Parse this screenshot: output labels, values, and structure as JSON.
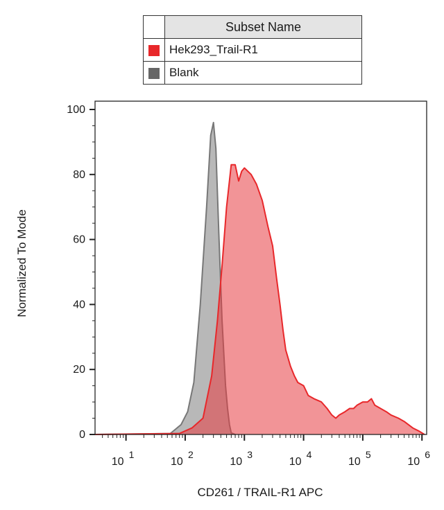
{
  "legend": {
    "header": "Subset Name",
    "items": [
      {
        "label": "Hek293_Trail-R1",
        "color": "#e8272a"
      },
      {
        "label": "Blank",
        "color": "#666666"
      }
    ]
  },
  "chart_data": {
    "type": "area",
    "title": "",
    "xlabel": "CD261 / TRAIL-R1 APC",
    "ylabel": "Normalized To Mode",
    "x_scale": "log",
    "xlim": [
      3,
      1200000
    ],
    "ylim": [
      0,
      100
    ],
    "x_ticks": [
      {
        "base": "10",
        "exp": "1",
        "value": 10
      },
      {
        "base": "10",
        "exp": "2",
        "value": 100
      },
      {
        "base": "10",
        "exp": "3",
        "value": 1000
      },
      {
        "base": "10",
        "exp": "4",
        "value": 10000
      },
      {
        "base": "10",
        "exp": "5",
        "value": 100000
      },
      {
        "base": "10",
        "exp": "6",
        "value": 1000000
      }
    ],
    "y_ticks": [
      0,
      20,
      40,
      60,
      80,
      100
    ],
    "grid": false,
    "legend_position": "top",
    "series": [
      {
        "name": "Blank",
        "fill": "#b8b8b8",
        "stroke": "#777777",
        "x": [
          3,
          56,
          85,
          110,
          140,
          180,
          230,
          270,
          300,
          330,
          370,
          420,
          480,
          520,
          560,
          600,
          700
        ],
        "y": [
          0,
          0.3,
          3,
          7,
          16,
          40,
          70,
          92,
          96,
          88,
          62,
          35,
          15,
          8,
          3,
          0.5,
          0
        ]
      },
      {
        "name": "Hek293_Trail-R1",
        "fill": "rgba(232, 60, 65, 0.55)",
        "stroke": "#e8272a",
        "x": [
          3,
          80,
          130,
          200,
          280,
          350,
          420,
          500,
          600,
          700,
          800,
          900,
          1000,
          1300,
          1600,
          2000,
          2500,
          3000,
          3500,
          4000,
          4500,
          5000,
          6000,
          7000,
          8000,
          10000,
          12000,
          15000,
          20000,
          25000,
          30000,
          35000,
          40000,
          50000,
          60000,
          70000,
          80000,
          100000,
          120000,
          140000,
          160000,
          200000,
          250000,
          300000,
          400000,
          500000,
          700000,
          900000,
          1100000
        ],
        "y": [
          0,
          0.3,
          2,
          5,
          18,
          35,
          52,
          70,
          83,
          83,
          78,
          81,
          82,
          80,
          77,
          72,
          64,
          58,
          48,
          40,
          32,
          26,
          21,
          18,
          16,
          15,
          12,
          11,
          10,
          8,
          6,
          5,
          6,
          7,
          8,
          8,
          9,
          10,
          10,
          11,
          9,
          8,
          7,
          6,
          5,
          4,
          2,
          1,
          0
        ]
      }
    ]
  }
}
